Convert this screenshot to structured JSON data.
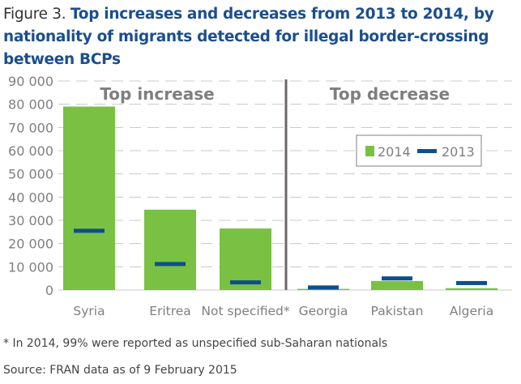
{
  "title": {
    "figure_label": "Figure 3.",
    "text": "Top increases and decreases from 2013 to 2014, by nationality of migrants detected for illegal border-crossing between BCPs"
  },
  "footnote": "* In 2014, 99% were reported as unspecified sub-Saharan nationals",
  "source": "Source: FRAN data as of 9 February 2015",
  "colors": {
    "bar2014": "#7ac143",
    "marker2013": "#0d4f8b",
    "divider": "#6d6767",
    "axis_text": "#7f7f7f",
    "grid": "#c8c8c8"
  },
  "chart_data": {
    "type": "bar",
    "title": "Top increases and decreases from 2013 to 2014, by nationality of migrants detected for illegal border-crossing between BCPs",
    "xlabel": "",
    "ylabel": "",
    "ylim": [
      0,
      90000
    ],
    "yticks": [
      0,
      10000,
      20000,
      30000,
      40000,
      50000,
      60000,
      70000,
      80000,
      90000
    ],
    "ytick_labels": [
      "0",
      "10 000",
      "20 000",
      "30 000",
      "40 000",
      "50 000",
      "60 000",
      "70 000",
      "80 000",
      "90 000"
    ],
    "grid": true,
    "categories": [
      "Syria",
      "Eritrea",
      "Not specified*",
      "Georgia",
      "Pakistan",
      "Algeria"
    ],
    "groups": [
      {
        "label": "Top increase",
        "categories": [
          "Syria",
          "Eritrea",
          "Not specified*"
        ]
      },
      {
        "label": "Top decrease",
        "categories": [
          "Georgia",
          "Pakistan",
          "Algeria"
        ]
      }
    ],
    "series": [
      {
        "name": "2014",
        "kind": "bar",
        "values": [
          79000,
          34600,
          26500,
          500,
          3900,
          800
        ]
      },
      {
        "name": "2013",
        "kind": "marker",
        "values": [
          25500,
          11200,
          3300,
          1100,
          5000,
          3000
        ]
      }
    ],
    "legend": {
      "position": "center-right",
      "entries": [
        "2014",
        "2013"
      ]
    }
  }
}
